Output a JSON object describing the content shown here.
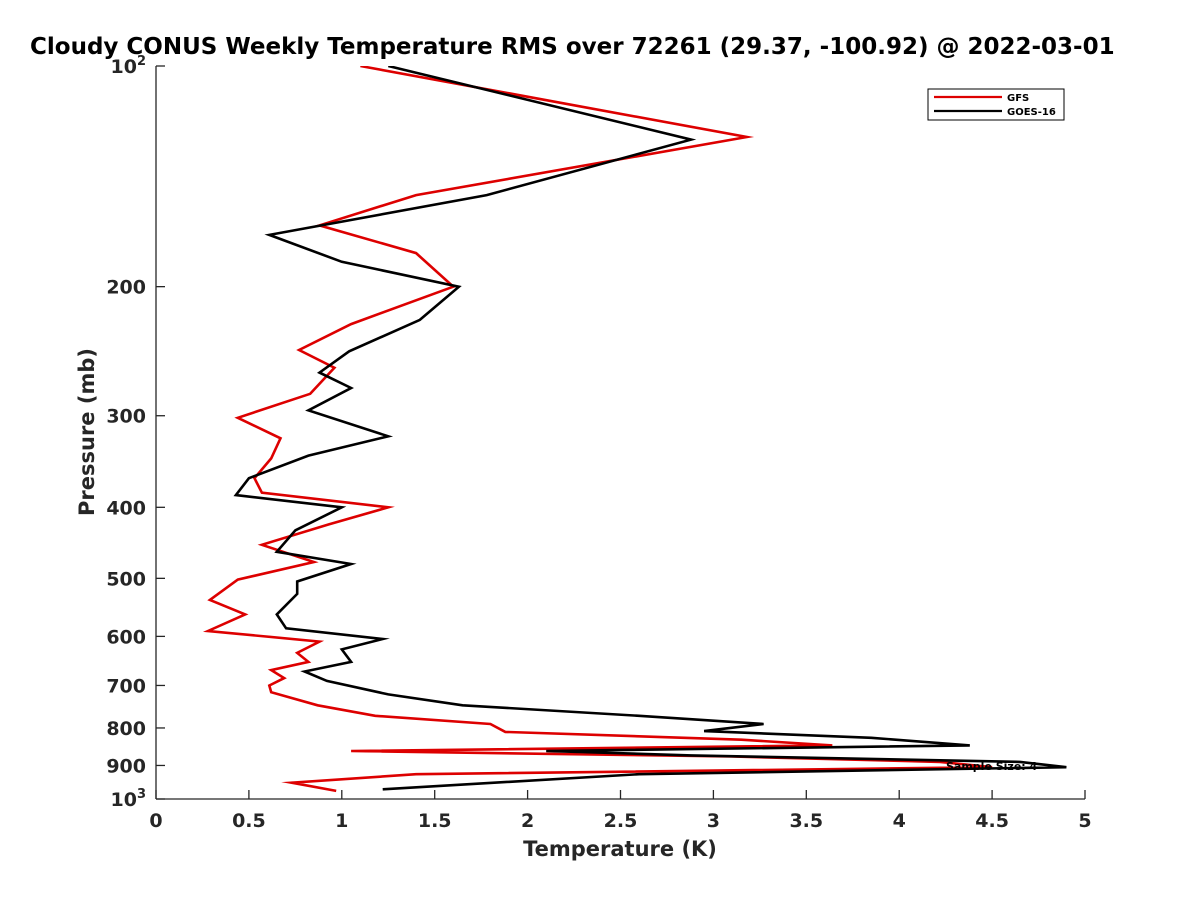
{
  "chart_data": {
    "type": "line",
    "title": "Cloudy CONUS Weekly Temperature RMS over 72261 (29.37, -100.92) @ 2022-03-01",
    "xlabel": "Temperature (K)",
    "ylabel": "Pressure (mb)",
    "xlim": [
      0,
      5
    ],
    "ylim": [
      100,
      1000
    ],
    "yscale": "log",
    "y_reversed": true,
    "grid": false,
    "legend_position": "top-right",
    "x_ticks": [
      "0",
      "0.5",
      "1",
      "1.5",
      "2",
      "2.5",
      "3",
      "3.5",
      "4",
      "4.5",
      "5"
    ],
    "y_ticks": [
      {
        "value": 100,
        "base": "10",
        "exp": "2"
      },
      {
        "value": 200,
        "label": "200"
      },
      {
        "value": 300,
        "label": "300"
      },
      {
        "value": 400,
        "label": "400"
      },
      {
        "value": 500,
        "label": "500"
      },
      {
        "value": 600,
        "label": "600"
      },
      {
        "value": 700,
        "label": "700"
      },
      {
        "value": 800,
        "label": "800"
      },
      {
        "value": 900,
        "label": "900"
      },
      {
        "value": 1000,
        "base": "10",
        "exp": "3"
      }
    ],
    "annotation": "Sample Size: 4",
    "series": [
      {
        "name": "GFS",
        "color": "#dd0000",
        "points": [
          [
            1.1,
            100
          ],
          [
            3.18,
            125
          ],
          [
            1.4,
            150
          ],
          [
            0.88,
            165
          ],
          [
            1.4,
            180
          ],
          [
            1.6,
            200
          ],
          [
            1.05,
            225
          ],
          [
            0.77,
            244
          ],
          [
            0.96,
            258
          ],
          [
            0.83,
            280
          ],
          [
            0.44,
            302
          ],
          [
            0.67,
            322
          ],
          [
            0.62,
            343
          ],
          [
            0.53,
            365
          ],
          [
            0.57,
            382
          ],
          [
            1.25,
            400
          ],
          [
            0.93,
            422
          ],
          [
            0.57,
            450
          ],
          [
            0.85,
            475
          ],
          [
            0.44,
            502
          ],
          [
            0.29,
            535
          ],
          [
            0.48,
            560
          ],
          [
            0.28,
            590
          ],
          [
            0.88,
            610
          ],
          [
            0.76,
            632
          ],
          [
            0.82,
            650
          ],
          [
            0.62,
            667
          ],
          [
            0.69,
            684
          ],
          [
            0.61,
            700
          ],
          [
            0.62,
            715
          ],
          [
            0.87,
            745
          ],
          [
            1.18,
            770
          ],
          [
            1.8,
            790
          ],
          [
            1.88,
            810
          ],
          [
            3.15,
            830
          ],
          [
            3.64,
            845
          ],
          [
            1.05,
            860
          ],
          [
            3.1,
            875
          ],
          [
            4.22,
            890
          ],
          [
            4.5,
            905
          ],
          [
            1.4,
            925
          ],
          [
            0.73,
            950
          ],
          [
            0.97,
            975
          ]
        ]
      },
      {
        "name": "GOES-16",
        "color": "#000000",
        "points": [
          [
            1.25,
            100
          ],
          [
            2.88,
            126
          ],
          [
            1.78,
            150
          ],
          [
            0.61,
            170
          ],
          [
            1.0,
            185
          ],
          [
            1.63,
            200
          ],
          [
            1.42,
            222
          ],
          [
            1.04,
            245
          ],
          [
            0.88,
            262
          ],
          [
            1.05,
            275
          ],
          [
            0.82,
            295
          ],
          [
            1.25,
            320
          ],
          [
            0.82,
            340
          ],
          [
            0.5,
            365
          ],
          [
            0.43,
            385
          ],
          [
            1.0,
            400
          ],
          [
            0.75,
            430
          ],
          [
            0.65,
            460
          ],
          [
            1.05,
            478
          ],
          [
            0.76,
            505
          ],
          [
            0.76,
            525
          ],
          [
            0.65,
            560
          ],
          [
            0.7,
            585
          ],
          [
            1.22,
            605
          ],
          [
            1.0,
            625
          ],
          [
            1.05,
            650
          ],
          [
            0.8,
            670
          ],
          [
            0.92,
            690
          ],
          [
            1.25,
            720
          ],
          [
            1.65,
            745
          ],
          [
            2.6,
            770
          ],
          [
            3.27,
            790
          ],
          [
            2.95,
            808
          ],
          [
            3.85,
            825
          ],
          [
            4.38,
            845
          ],
          [
            2.1,
            860
          ],
          [
            2.88,
            872
          ],
          [
            4.65,
            890
          ],
          [
            4.9,
            905
          ],
          [
            2.6,
            925
          ],
          [
            1.22,
            970
          ]
        ]
      }
    ]
  }
}
